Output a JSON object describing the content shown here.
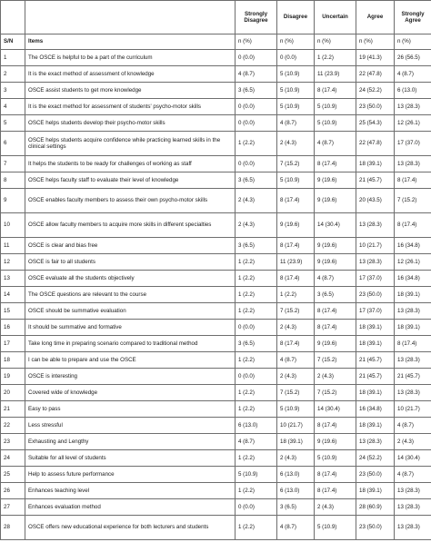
{
  "table": {
    "headers": {
      "strongly_disagree": "Strongly Disagree",
      "disagree": "Disagree",
      "uncertain": "Uncertain",
      "agree": "Agree",
      "strongly_agree": "Strongly Agree"
    },
    "subheaders": {
      "sn": "S/N",
      "items": "Items",
      "count": "n (%)"
    },
    "rows": [
      {
        "sn": "1",
        "item": "The OSCE is helpful to be a part of the curriculum",
        "sd": "0 (0.0)",
        "d": "0 (0.0)",
        "u": "1 (2.2)",
        "a": "19 (41.3)",
        "sa": "26 (56.5)"
      },
      {
        "sn": "2",
        "item": "It is the exact method of assessment of knowledge",
        "sd": "4 (8.7)",
        "d": "5 (10.9)",
        "u": "11 (23.9)",
        "a": "22 (47.8)",
        "sa": "4 (8.7)"
      },
      {
        "sn": "3",
        "item": "OSCE assist students to get more knowledge",
        "sd": "3 (6.5)",
        "d": "5 (10.9)",
        "u": "8 (17.4)",
        "a": "24 (52.2)",
        "sa": "6 (13.0)"
      },
      {
        "sn": "4",
        "item": "It is the exact method for assessment of students' psycho-motor skills",
        "sd": "0 (0.0)",
        "d": "5 (10.9)",
        "u": "5 (10.9)",
        "a": "23 (50.0)",
        "sa": "13 (28.3)"
      },
      {
        "sn": "5",
        "item": "OSCE helps students develop their psycho-motor skills",
        "sd": "0 (0.0)",
        "d": "4 (8.7)",
        "u": "5 (10.9)",
        "a": "25 (54.3)",
        "sa": "12 (26.1)"
      },
      {
        "sn": "6",
        "item": "OSCE helps students acquire confidence while practicing learned skills in the clinical settings",
        "sd": "1 (2.2)",
        "d": "2 (4.3)",
        "u": "4 (8.7)",
        "a": "22 (47.8)",
        "sa": "17 (37.0)",
        "tall": true
      },
      {
        "sn": "7",
        "item": "It helps the students to be ready for challenges of working as staff",
        "sd": "0 (0.0)",
        "d": "7 (15.2)",
        "u": "8 (17.4)",
        "a": "18 (39.1)",
        "sa": "13 (28.3)"
      },
      {
        "sn": "8",
        "item": "OSCE helps faculty staff to evaluate their level of knowledge",
        "sd": "3 (6.5)",
        "d": "5 (10.9)",
        "u": "9 (19.6)",
        "a": "21 (45.7)",
        "sa": "8 (17.4)"
      },
      {
        "sn": "9",
        "item": "OSCE enables faculty members to assess their own psycho-motor skills",
        "sd": "2 (4.3)",
        "d": "8 (17.4)",
        "u": "9 (19.6)",
        "a": "20 (43.5)",
        "sa": "7 (15.2)",
        "tall": true
      },
      {
        "sn": "10",
        "item": "OSCE allow faculty members to acquire more skills in different specialties",
        "sd": "2 (4.3)",
        "d": "9 (19.6)",
        "u": "14 (30.4)",
        "a": "13 (28.3)",
        "sa": "8 (17.4)",
        "tall": true
      },
      {
        "sn": "11",
        "item": "OSCE is clear and bias free",
        "sd": "3 (6.5)",
        "d": "8 (17.4)",
        "u": "9 (19.6)",
        "a": "10 (21.7)",
        "sa": "16 (34.8)"
      },
      {
        "sn": "12",
        "item": "OSCE is fair to all students",
        "sd": "1 (2.2)",
        "d": "11 (23.9)",
        "u": "9 (19.6)",
        "a": "13 (28.3)",
        "sa": "12 (26.1)"
      },
      {
        "sn": "13",
        "item": "OSCE evaluate all the students objectively",
        "sd": "1 (2.2)",
        "d": "8 (17.4)",
        "u": "4 (8.7)",
        "a": "17 (37.0)",
        "sa": "16 (34.8)"
      },
      {
        "sn": "14",
        "item": "The OSCE questions are relevant to the course",
        "sd": "1 (2.2)",
        "d": "1 (2.2)",
        "u": "3 (6.5)",
        "a": "23 (50.0)",
        "sa": "18 (39.1)"
      },
      {
        "sn": "15",
        "item": "OSCE should be summative evaluation",
        "sd": "1 (2.2)",
        "d": "7 (15.2)",
        "u": "8 (17.4)",
        "a": "17 (37.0)",
        "sa": "13 (28.3)"
      },
      {
        "sn": "16",
        "item": "It should be summative and formative",
        "sd": "0 (0.0)",
        "d": "2 (4.3)",
        "u": "8 (17.4)",
        "a": "18 (39.1)",
        "sa": "18 (39.1)"
      },
      {
        "sn": "17",
        "item": "Take long time in preparing scenario compared to traditional method",
        "sd": "3 (6.5)",
        "d": "8 (17.4)",
        "u": "9 (19.6)",
        "a": "18 (39.1)",
        "sa": "8 (17.4)"
      },
      {
        "sn": "18",
        "item": "I can be able to prepare and use the OSCE",
        "sd": "1 (2.2)",
        "d": "4 (8.7)",
        "u": "7 (15.2)",
        "a": "21 (45.7)",
        "sa": "13 (28.3)"
      },
      {
        "sn": "19",
        "item": "OSCE is interesting",
        "sd": "0 (0.0)",
        "d": "2 (4.3)",
        "u": "2 (4.3)",
        "a": "21 (45.7)",
        "sa": "21 (45.7)"
      },
      {
        "sn": "20",
        "item": "Covered wide of knowledge",
        "sd": "1 (2.2)",
        "d": "7 (15.2)",
        "u": "7 (15.2)",
        "a": "18 (39.1)",
        "sa": "13 (28.3)"
      },
      {
        "sn": "21",
        "item": "Easy to pass",
        "sd": "1 (2.2)",
        "d": "5 (10.9)",
        "u": "14 (30.4)",
        "a": "16 (34.8)",
        "sa": "10 (21.7)"
      },
      {
        "sn": "22",
        "item": "Less stressful",
        "sd": "6 (13.0)",
        "d": "10 (21.7)",
        "u": "8 (17.4)",
        "a": "18 (39.1)",
        "sa": "4 (8.7)"
      },
      {
        "sn": "23",
        "item": "Exhausting and Lengthy",
        "sd": "4 (8.7)",
        "d": "18 (39.1)",
        "u": "9 (19.6)",
        "a": "13 (28.3)",
        "sa": "2 (4.3)"
      },
      {
        "sn": "24",
        "item": "Suitable for all level of students",
        "sd": "1 (2.2)",
        "d": "2 (4.3)",
        "u": "5 (10.9)",
        "a": "24 (52.2)",
        "sa": "14 (30.4)"
      },
      {
        "sn": "25",
        "item": "Help to assess future performance",
        "sd": "5 (10.9)",
        "d": "6 (13.0)",
        "u": "8 (17.4)",
        "a": "23 (50.0)",
        "sa": "4 (8.7)"
      },
      {
        "sn": "26",
        "item": "Enhances teaching level",
        "sd": "1 (2.2)",
        "d": "6 (13.0)",
        "u": "8 (17.4)",
        "a": "18 (39.1)",
        "sa": "13 (28.3)"
      },
      {
        "sn": "27",
        "item": "Enhances evaluation method",
        "sd": "0 (0.0)",
        "d": "3 (6.5)",
        "u": "2 (4.3)",
        "a": "28 (60.9)",
        "sa": "13 (28.3)"
      },
      {
        "sn": "28",
        "item": "OSCE offers new educational experience for both lecturers and students",
        "sd": "1 (2.2)",
        "d": "4 (8.7)",
        "u": "5 (10.9)",
        "a": "23 (50.0)",
        "sa": "13 (28.3)",
        "tall": true
      }
    ]
  }
}
